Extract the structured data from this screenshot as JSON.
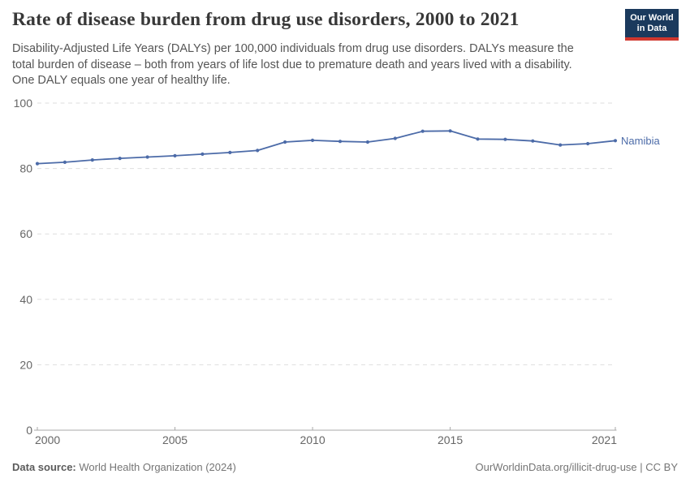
{
  "header": {
    "title": "Rate of disease burden from drug use disorders, 2000 to 2021",
    "subtitle": "Disability-Adjusted Life Years (DALYs) per 100,000 individuals from drug use disorders. DALYs measure the\ntotal burden of disease – both from years of life lost due to premature death and years lived with a disability.\nOne DALY equals one year of healthy life.",
    "logo_text": "Our World\nin Data",
    "logo_bg_color": "#1b3a5d",
    "logo_bar_color": "#d0372e"
  },
  "chart_data": {
    "type": "line",
    "x": [
      2000,
      2001,
      2002,
      2003,
      2004,
      2005,
      2006,
      2007,
      2008,
      2009,
      2010,
      2011,
      2012,
      2013,
      2014,
      2015,
      2016,
      2017,
      2018,
      2019,
      2020,
      2021
    ],
    "series": [
      {
        "name": "Namibia",
        "color": "#4c6ba8",
        "values": [
          81.5,
          81.9,
          82.6,
          83.1,
          83.5,
          83.9,
          84.4,
          84.9,
          85.5,
          88.1,
          88.6,
          88.3,
          88.1,
          89.2,
          91.4,
          91.5,
          89.0,
          88.9,
          88.4,
          87.2,
          87.6,
          88.5
        ]
      }
    ],
    "title": "Rate of disease burden from drug use disorders, 2000 to 2021",
    "xlabel": "",
    "ylabel": "DALYs per 100,000 individuals",
    "xlim": [
      2000,
      2021
    ],
    "ylim": [
      0,
      100
    ],
    "yticks": [
      0,
      20,
      40,
      60,
      80,
      100
    ],
    "xticks": [
      2000,
      2005,
      2010,
      2015,
      2021
    ],
    "grid": "dashed-horizontal",
    "legend_position": "end-of-line-label",
    "marker": "dot"
  },
  "style": {
    "gridline_color": "#dedede",
    "axis_color": "#a8a8a8",
    "tick_label_color": "#666666"
  },
  "footer": {
    "source_label": "Data source:",
    "source_text": " World Health Organization (2024)",
    "credit_text": "OurWorldinData.org/illicit-drug-use | CC BY"
  }
}
